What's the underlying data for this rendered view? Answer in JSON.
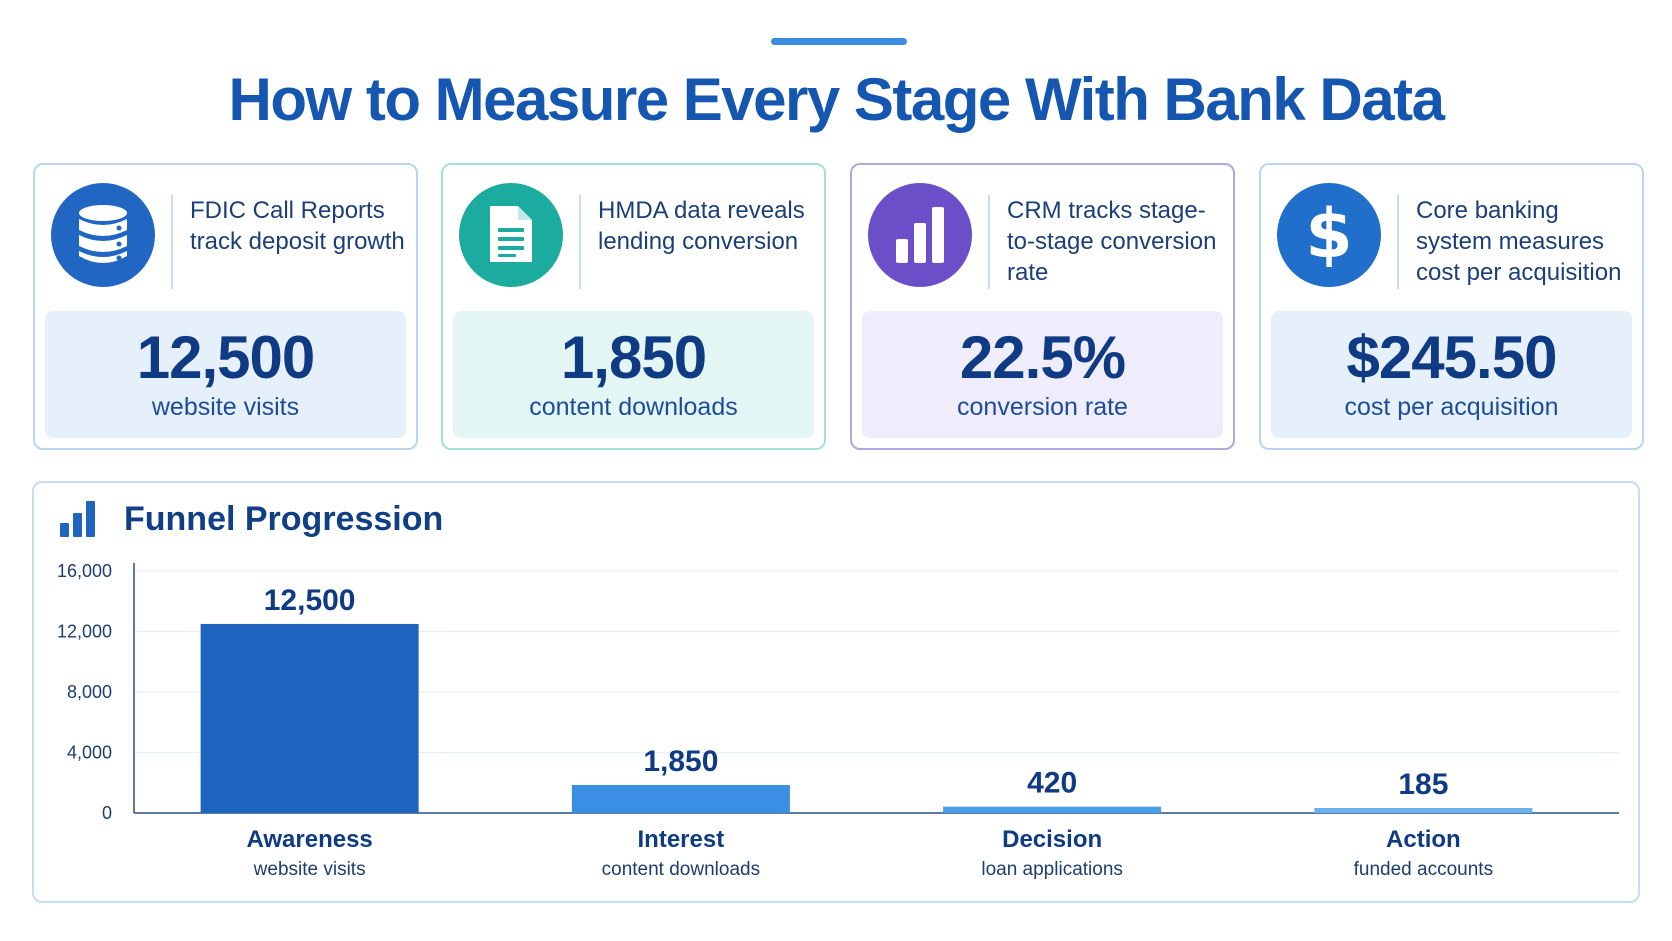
{
  "title": "How to Measure Every Stage With Bank Data",
  "cards": [
    {
      "icon": "database-icon",
      "color": "#2266c4",
      "bg": "#e6f0fb",
      "desc": "FDIC Call Reports track deposit growth",
      "value": "12,500",
      "label": "website visits"
    },
    {
      "icon": "document-icon",
      "color": "#1bab9f",
      "bg": "#e4f6f4",
      "desc": "HMDA data reveals lending conversion",
      "value": "1,850",
      "label": "content downloads"
    },
    {
      "icon": "bar-chart-icon",
      "color": "#6a4fc9",
      "bg": "#efecfb",
      "desc": "CRM tracks stage-to-stage conversion rate",
      "value": "22.5%",
      "label": "conversion rate"
    },
    {
      "icon": "dollar-icon",
      "color": "#1f6fcb",
      "bg": "#e6f0fb",
      "desc": "Core banking system measures cost per acquisition",
      "value": "$245.50",
      "label": "cost per acquisition"
    }
  ],
  "chart_data": {
    "type": "bar",
    "title": "Funnel Progression",
    "categories": [
      "Awareness",
      "Interest",
      "Decision",
      "Action"
    ],
    "subcategories": [
      "website visits",
      "content downloads",
      "loan applications",
      "funded accounts"
    ],
    "values": [
      12500,
      1850,
      420,
      185
    ],
    "value_labels": [
      "12,500",
      "1,850",
      "420",
      "185"
    ],
    "ylim": [
      0,
      16000
    ],
    "yticks": [
      0,
      4000,
      8000,
      12000,
      16000
    ],
    "ytick_labels": [
      "0",
      "4,000",
      "8,000",
      "12,000",
      "16,000"
    ],
    "bar_colors": [
      "#1f65c0",
      "#3a8fe2",
      "#4d9ee8",
      "#6ab0ef"
    ],
    "grid": true,
    "xlabel": "",
    "ylabel": ""
  }
}
